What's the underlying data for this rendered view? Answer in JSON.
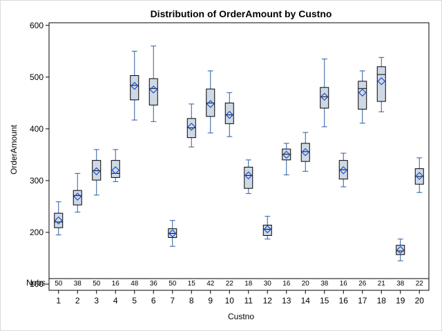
{
  "chart_data": {
    "type": "box",
    "title": "Distribution of OrderAmount by Custno",
    "xlabel": "Custno",
    "ylabel": "OrderAmount",
    "ylim": [
      88,
      605
    ],
    "yticks": [
      100,
      200,
      300,
      400,
      500,
      600
    ],
    "nobs_label": "Nobs",
    "box_fill": "#cfd9e6",
    "whisker_color": "#2c5aa0",
    "mean_color": "#1f4fc4",
    "categories": [
      "1",
      "2",
      "3",
      "4",
      "5",
      "6",
      "7",
      "8",
      "9",
      "10",
      "11",
      "12",
      "13",
      "14",
      "15",
      "16",
      "17",
      "18",
      "19",
      "20"
    ],
    "nobs": [
      "50",
      "38",
      "50",
      "16",
      "48",
      "36",
      "50",
      "15",
      "42",
      "22",
      "18",
      "30",
      "16",
      "20",
      "38",
      "16",
      "26",
      "21",
      "38",
      "22"
    ],
    "boxes": [
      {
        "min": 195,
        "q1": 209,
        "median": 220,
        "q3": 237,
        "max": 259,
        "mean": 223
      },
      {
        "min": 239,
        "q1": 253,
        "median": 271,
        "q3": 281,
        "max": 314,
        "mean": 269
      },
      {
        "min": 272,
        "q1": 301,
        "median": 319,
        "q3": 339,
        "max": 360,
        "mean": 318
      },
      {
        "min": 298,
        "q1": 306,
        "median": 314,
        "q3": 339,
        "max": 360,
        "mean": 320
      },
      {
        "min": 417,
        "q1": 456,
        "median": 484,
        "q3": 503,
        "max": 550,
        "mean": 483
      },
      {
        "min": 414,
        "q1": 446,
        "median": 478,
        "q3": 497,
        "max": 560,
        "mean": 476
      },
      {
        "min": 173,
        "q1": 190,
        "median": 198,
        "q3": 207,
        "max": 223,
        "mean": 198
      },
      {
        "min": 365,
        "q1": 383,
        "median": 402,
        "q3": 420,
        "max": 448,
        "mean": 404
      },
      {
        "min": 392,
        "q1": 424,
        "median": 450,
        "q3": 477,
        "max": 512,
        "mean": 448
      },
      {
        "min": 385,
        "q1": 410,
        "median": 427,
        "q3": 450,
        "max": 470,
        "mean": 427
      },
      {
        "min": 275,
        "q1": 285,
        "median": 310,
        "q3": 326,
        "max": 340,
        "mean": 310
      },
      {
        "min": 187,
        "q1": 194,
        "median": 206,
        "q3": 214,
        "max": 231,
        "mean": 206
      },
      {
        "min": 311,
        "q1": 340,
        "median": 351,
        "q3": 361,
        "max": 372,
        "mean": 350
      },
      {
        "min": 318,
        "q1": 337,
        "median": 356,
        "q3": 372,
        "max": 393,
        "mean": 355
      },
      {
        "min": 404,
        "q1": 440,
        "median": 462,
        "q3": 480,
        "max": 535,
        "mean": 462
      },
      {
        "min": 288,
        "q1": 303,
        "median": 321,
        "q3": 339,
        "max": 353,
        "mean": 320
      },
      {
        "min": 411,
        "q1": 438,
        "median": 478,
        "q3": 492,
        "max": 512,
        "mean": 470
      },
      {
        "min": 433,
        "q1": 453,
        "median": 505,
        "q3": 520,
        "max": 538,
        "mean": 492
      },
      {
        "min": 145,
        "q1": 157,
        "median": 164,
        "q3": 175,
        "max": 187,
        "mean": 166
      },
      {
        "min": 277,
        "q1": 293,
        "median": 308,
        "q3": 323,
        "max": 344,
        "mean": 309
      }
    ]
  }
}
